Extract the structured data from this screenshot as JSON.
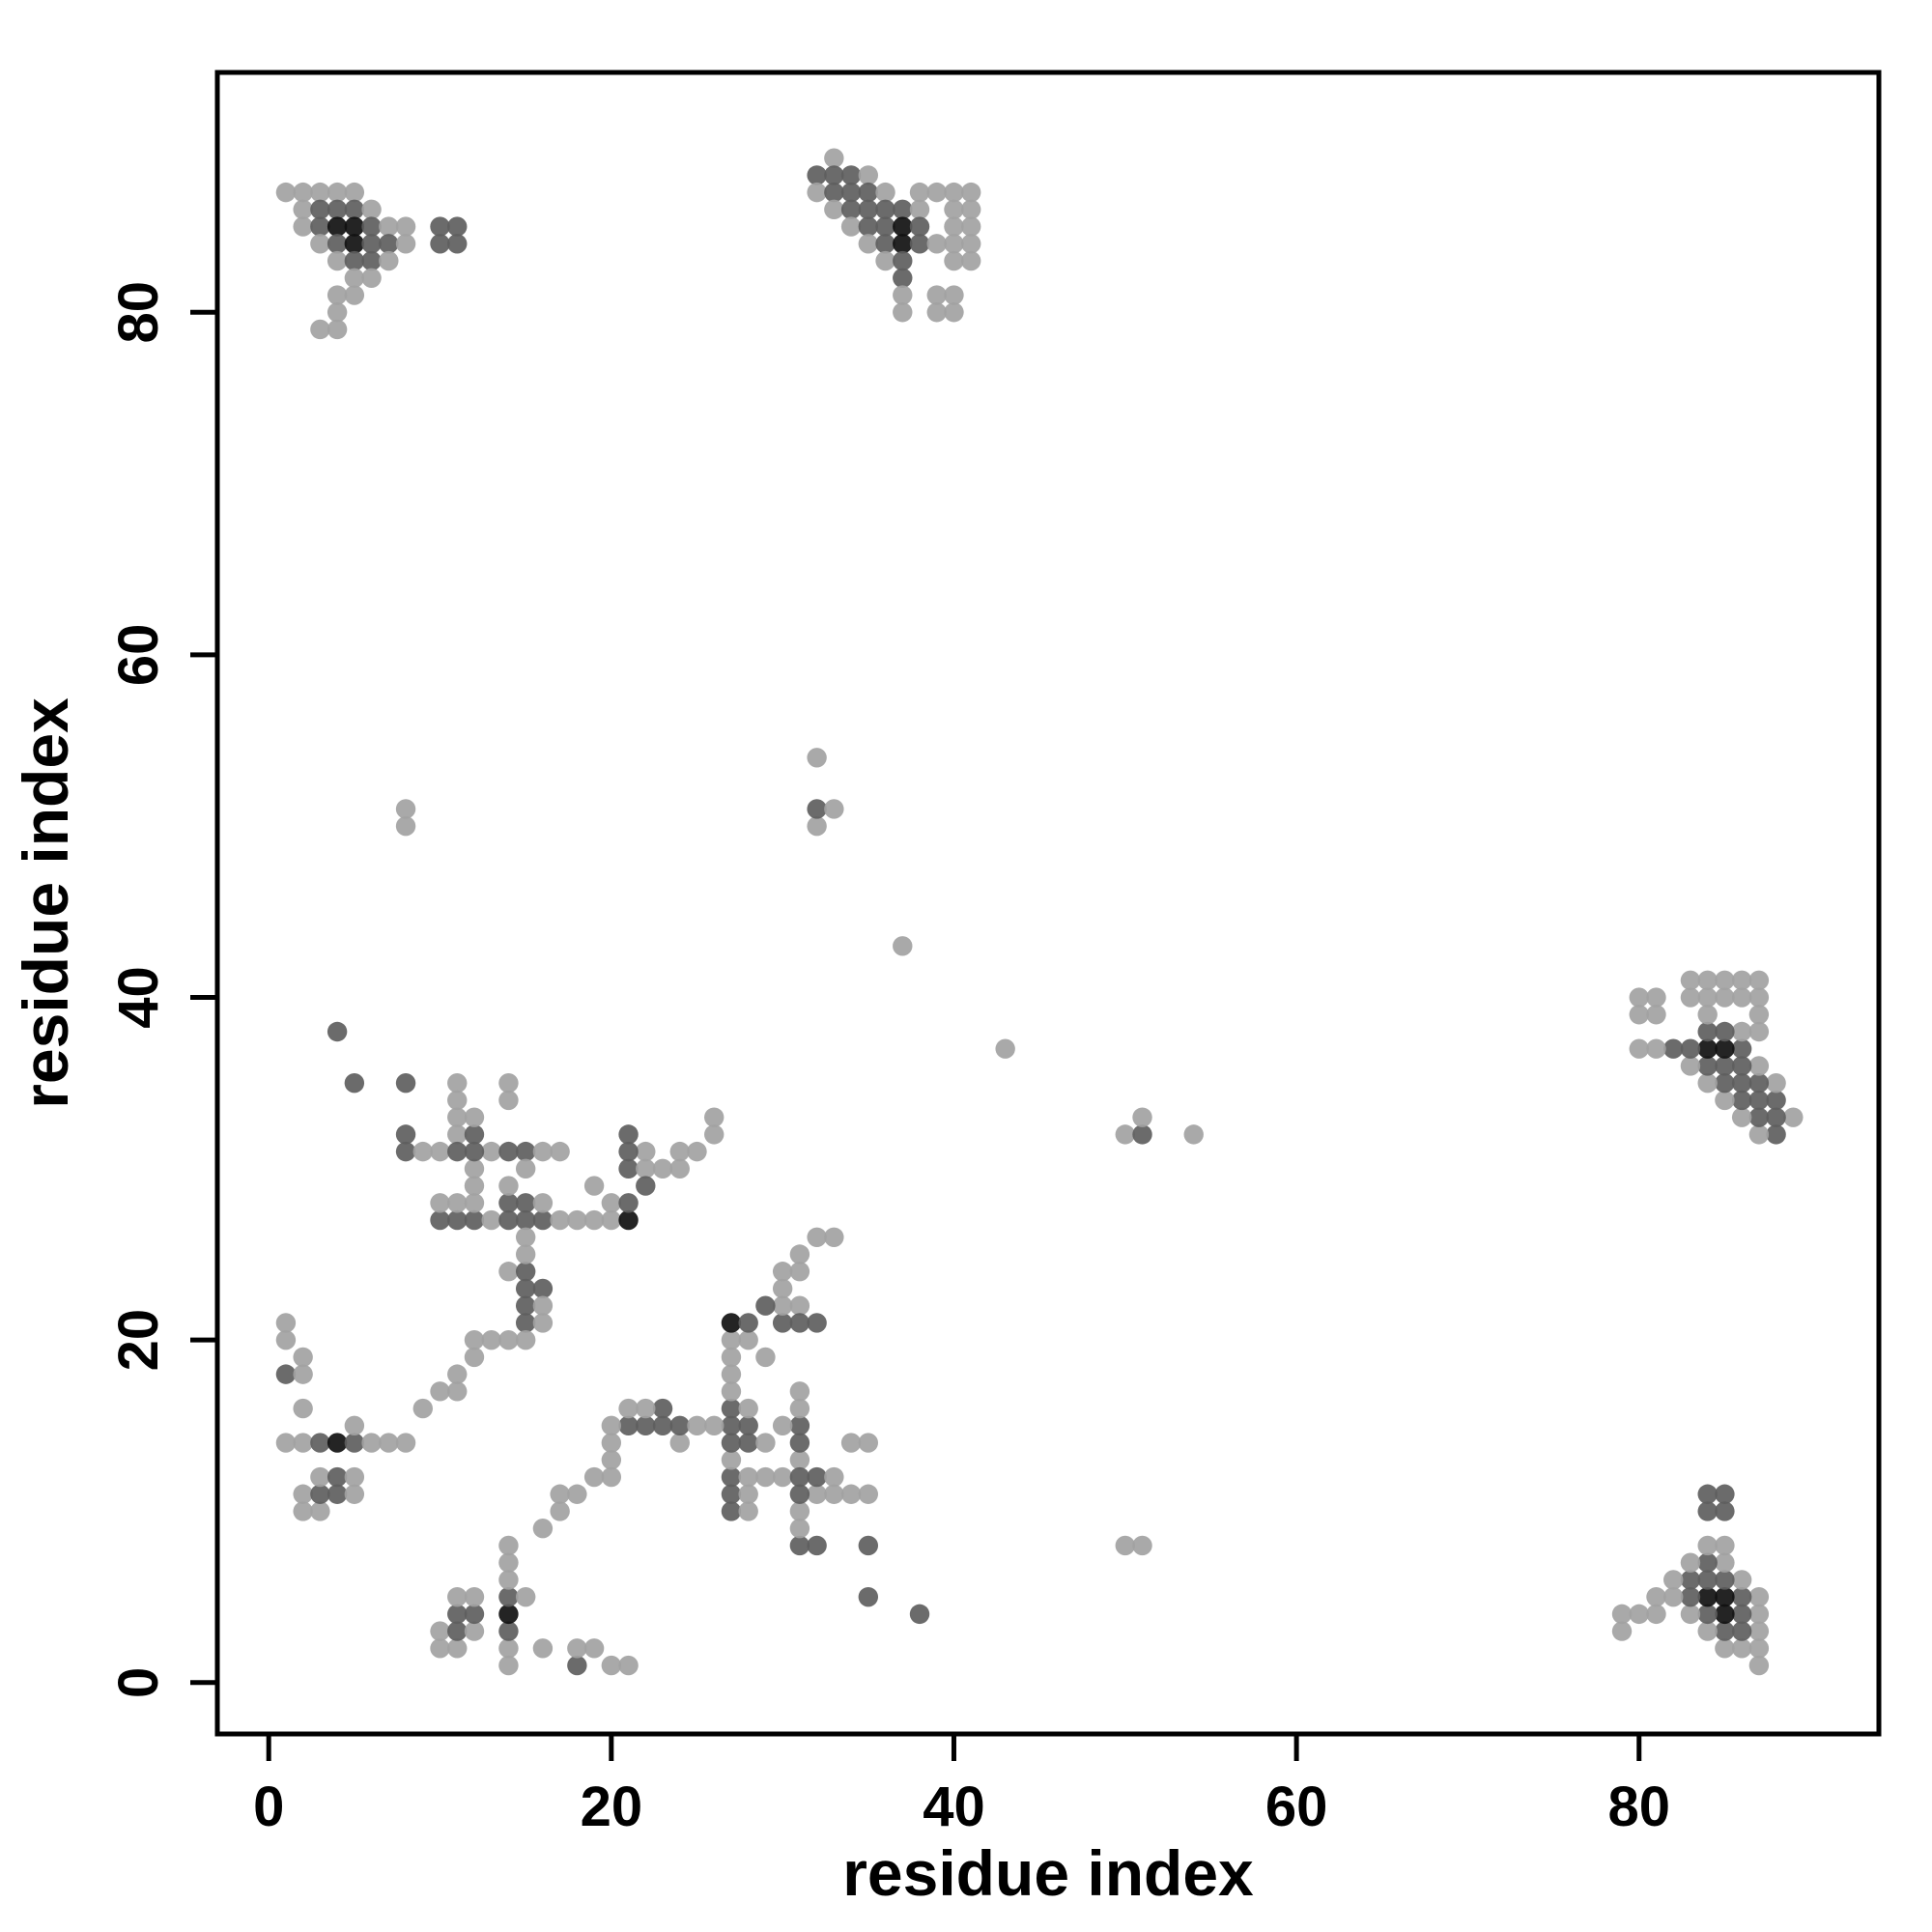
{
  "chart_data": {
    "type": "scatter",
    "title": "",
    "xlabel": "residue index",
    "ylabel": "residue index",
    "xlim": [
      -3,
      94
    ],
    "ylim": [
      -3,
      94
    ],
    "xticks": [
      0,
      20,
      40,
      60,
      80
    ],
    "yticks": [
      0,
      20,
      40,
      60,
      80
    ],
    "grid": false,
    "legend": "none",
    "marker": "filled-circle",
    "symmetry": "each pair [i, j, shade] is a residue-residue contact plotted at both (i,j) and (j,i)",
    "shade_colors": {
      "2": "#a2a2a2",
      "3": "#5e5e5e",
      "4": "#111111"
    },
    "contact_pairs": [
      [
        1,
        87,
        2
      ],
      [
        2,
        87,
        2
      ],
      [
        3,
        87,
        2
      ],
      [
        4,
        87,
        2
      ],
      [
        5,
        87,
        2
      ],
      [
        2,
        86,
        2
      ],
      [
        3,
        86,
        3
      ],
      [
        4,
        86,
        3
      ],
      [
        5,
        86,
        3
      ],
      [
        6,
        86,
        2
      ],
      [
        2,
        85,
        2
      ],
      [
        3,
        85,
        3
      ],
      [
        4,
        85,
        4
      ],
      [
        5,
        85,
        4
      ],
      [
        6,
        85,
        3
      ],
      [
        7,
        85,
        2
      ],
      [
        8,
        85,
        2
      ],
      [
        10,
        85,
        3
      ],
      [
        11,
        85,
        3
      ],
      [
        3,
        84,
        2
      ],
      [
        4,
        84,
        3
      ],
      [
        5,
        84,
        4
      ],
      [
        6,
        84,
        3
      ],
      [
        7,
        84,
        3
      ],
      [
        8,
        84,
        2
      ],
      [
        10,
        84,
        3
      ],
      [
        11,
        84,
        3
      ],
      [
        4,
        83,
        2
      ],
      [
        5,
        83,
        3
      ],
      [
        6,
        83,
        3
      ],
      [
        7,
        83,
        2
      ],
      [
        5,
        82,
        2
      ],
      [
        6,
        82,
        2
      ],
      [
        4,
        81,
        2
      ],
      [
        5,
        81,
        2
      ],
      [
        4,
        80,
        2
      ],
      [
        3,
        79,
        2
      ],
      [
        4,
        79,
        2
      ],
      [
        33,
        89,
        2
      ],
      [
        32,
        88,
        3
      ],
      [
        33,
        88,
        3
      ],
      [
        34,
        88,
        3
      ],
      [
        35,
        88,
        2
      ],
      [
        32,
        87,
        2
      ],
      [
        33,
        87,
        3
      ],
      [
        34,
        87,
        3
      ],
      [
        35,
        87,
        3
      ],
      [
        36,
        87,
        2
      ],
      [
        38,
        87,
        2
      ],
      [
        39,
        87,
        2
      ],
      [
        40,
        87,
        2
      ],
      [
        41,
        87,
        2
      ],
      [
        33,
        86,
        2
      ],
      [
        34,
        86,
        3
      ],
      [
        35,
        86,
        3
      ],
      [
        36,
        86,
        3
      ],
      [
        37,
        86,
        3
      ],
      [
        38,
        86,
        2
      ],
      [
        40,
        86,
        2
      ],
      [
        41,
        86,
        2
      ],
      [
        34,
        85,
        2
      ],
      [
        35,
        85,
        3
      ],
      [
        36,
        85,
        3
      ],
      [
        37,
        85,
        4
      ],
      [
        38,
        85,
        3
      ],
      [
        40,
        85,
        2
      ],
      [
        41,
        85,
        2
      ],
      [
        35,
        84,
        2
      ],
      [
        36,
        84,
        3
      ],
      [
        37,
        84,
        4
      ],
      [
        38,
        84,
        3
      ],
      [
        39,
        84,
        2
      ],
      [
        40,
        84,
        2
      ],
      [
        41,
        84,
        2
      ],
      [
        36,
        83,
        2
      ],
      [
        37,
        83,
        3
      ],
      [
        40,
        83,
        2
      ],
      [
        41,
        83,
        2
      ],
      [
        37,
        82,
        3
      ],
      [
        37,
        81,
        2
      ],
      [
        39,
        81,
        2
      ],
      [
        40,
        81,
        2
      ],
      [
        37,
        80,
        2
      ],
      [
        39,
        80,
        2
      ],
      [
        40,
        80,
        2
      ],
      [
        1,
        20,
        2
      ],
      [
        1,
        21,
        2
      ],
      [
        1,
        18,
        3
      ],
      [
        2,
        18,
        2
      ],
      [
        1,
        14,
        2
      ],
      [
        2,
        14,
        2
      ],
      [
        3,
        14,
        3
      ],
      [
        4,
        14,
        4
      ],
      [
        5,
        14,
        3
      ],
      [
        6,
        14,
        2
      ],
      [
        7,
        14,
        2
      ],
      [
        8,
        14,
        2
      ],
      [
        2,
        10,
        2
      ],
      [
        3,
        10,
        2
      ],
      [
        2,
        11,
        2
      ],
      [
        3,
        11,
        3
      ],
      [
        4,
        11,
        3
      ],
      [
        5,
        11,
        2
      ],
      [
        3,
        12,
        2
      ],
      [
        4,
        12,
        3
      ],
      [
        5,
        12,
        2
      ],
      [
        2,
        16,
        2
      ],
      [
        5,
        15,
        2
      ],
      [
        2,
        19,
        2
      ],
      [
        5,
        35,
        3
      ],
      [
        8,
        35,
        3
      ],
      [
        8,
        32,
        3
      ],
      [
        8,
        31,
        3
      ],
      [
        9,
        31,
        2
      ],
      [
        10,
        31,
        2
      ],
      [
        11,
        35,
        2
      ],
      [
        11,
        34,
        2
      ],
      [
        11,
        33,
        2
      ],
      [
        11,
        32,
        2
      ],
      [
        11,
        31,
        3
      ],
      [
        14,
        34,
        2
      ],
      [
        10,
        27,
        3
      ],
      [
        11,
        27,
        3
      ],
      [
        12,
        27,
        3
      ],
      [
        13,
        27,
        2
      ],
      [
        14,
        27,
        3
      ],
      [
        15,
        27,
        3
      ],
      [
        16,
        27,
        3
      ],
      [
        17,
        27,
        2
      ],
      [
        18,
        27,
        2
      ],
      [
        19,
        27,
        2
      ],
      [
        20,
        27,
        2
      ],
      [
        21,
        27,
        4
      ],
      [
        10,
        28,
        2
      ],
      [
        11,
        28,
        2
      ],
      [
        12,
        28,
        2
      ],
      [
        14,
        28,
        3
      ],
      [
        15,
        28,
        3
      ],
      [
        16,
        28,
        2
      ],
      [
        20,
        28,
        2
      ],
      [
        21,
        28,
        3
      ],
      [
        13,
        31,
        2
      ],
      [
        14,
        31,
        3
      ],
      [
        15,
        31,
        3
      ],
      [
        16,
        31,
        2
      ],
      [
        17,
        31,
        2
      ],
      [
        15,
        30,
        2
      ],
      [
        12,
        29,
        2
      ],
      [
        12,
        30,
        2
      ],
      [
        12,
        31,
        3
      ],
      [
        12,
        32,
        3
      ],
      [
        12,
        33,
        2
      ],
      [
        14,
        24,
        2
      ],
      [
        15,
        24,
        3
      ],
      [
        15,
        23,
        3
      ],
      [
        16,
        23,
        3
      ],
      [
        15,
        22,
        3
      ],
      [
        16,
        22,
        2
      ],
      [
        15,
        21,
        3
      ],
      [
        16,
        21,
        2
      ],
      [
        14,
        20,
        2
      ],
      [
        15,
        20,
        2
      ],
      [
        15,
        25,
        2
      ],
      [
        15,
        26,
        2
      ],
      [
        13,
        20,
        2
      ],
      [
        9,
        16,
        2
      ],
      [
        10,
        17,
        2
      ],
      [
        11,
        17,
        2
      ],
      [
        11,
        18,
        2
      ],
      [
        12,
        19,
        2
      ],
      [
        12,
        20,
        2
      ],
      [
        21,
        30,
        3
      ],
      [
        22,
        30,
        2
      ],
      [
        23,
        30,
        2
      ],
      [
        24,
        30,
        2
      ],
      [
        22,
        31,
        2
      ],
      [
        26,
        32,
        2
      ],
      [
        26,
        33,
        2
      ],
      [
        22,
        29,
        3
      ],
      [
        24,
        31,
        2
      ],
      [
        25,
        31,
        2
      ],
      [
        21,
        32,
        3
      ],
      [
        21,
        31,
        3
      ],
      [
        19,
        29,
        2
      ],
      [
        14,
        29,
        2
      ],
      [
        14,
        35,
        2
      ],
      [
        4,
        38,
        3
      ],
      [
        8,
        50,
        2
      ],
      [
        8,
        51,
        2
      ],
      [
        32,
        50,
        2
      ],
      [
        32,
        51,
        3
      ],
      [
        33,
        51,
        2
      ],
      [
        32,
        54,
        2
      ],
      [
        37,
        43,
        2
      ]
    ]
  }
}
